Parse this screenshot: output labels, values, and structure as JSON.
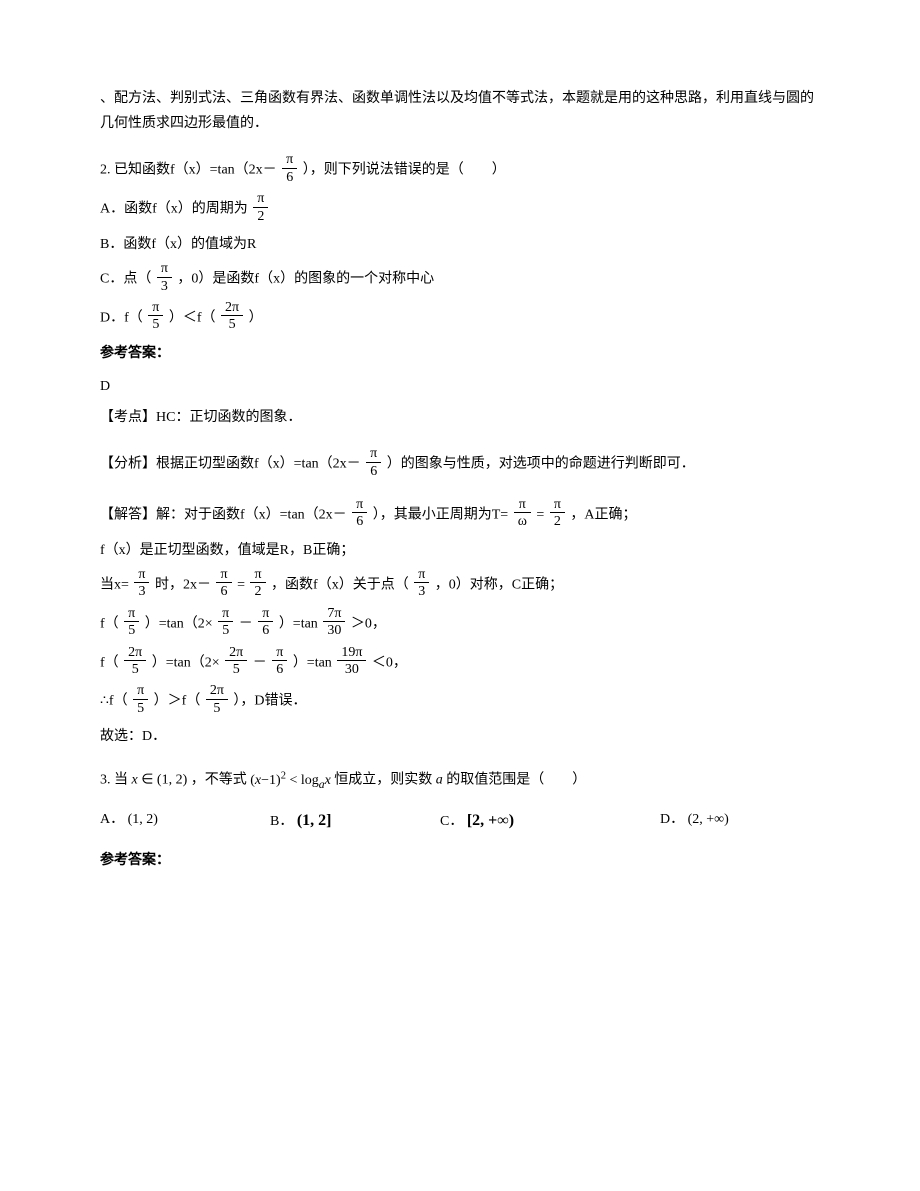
{
  "intro": "、配方法、判别式法、三角函数有界法、函数单调性法以及均值不等式法，本题就是用的这种思路，利用直线与圆的几何性质求四边形最值的．",
  "q2": {
    "stem_pre": "2. 已知函数f（x）=tan（2x－",
    "stem_post": "），则下列说法错误的是（　　）",
    "optA_pre": "A．函数f（x）的周期为",
    "optB": "B．函数f（x）的值域为R",
    "optC_pre": "C．点（",
    "optC_post": "，0）是函数f（x）的图象的一个对称中心",
    "optD_pre": "D．f（",
    "optD_mid": "）＜f（",
    "optD_post": "）",
    "ans_label": "参考答案：",
    "answer": "D",
    "point": "【考点】HC：正切函数的图象．",
    "analysis_pre": "【分析】根据正切型函数f（x）=tan（2x－",
    "analysis_post": "）的图象与性质，对选项中的命题进行判断即可．",
    "solve_pre": "【解答】解：对于函数f（x）=tan（2x－",
    "solve_mid": "），其最小正周期为T=",
    "solve_eq": "=",
    "solve_post": "，A正确；",
    "solve_b": "f（x）是正切型函数，值域是R，B正确；",
    "solve_c_1": "当x=",
    "solve_c_2": "时，2x－",
    "solve_c_3": "=",
    "solve_c_4": "，函数f（x）关于点（",
    "solve_c_5": "，0）对称，C正确；",
    "solve_d1_1": "f（",
    "solve_d1_2": "）=tan（2×",
    "solve_d1_3": "－",
    "solve_d1_4": "）=tan",
    "solve_d1_5": "＞0，",
    "solve_d2_1": "f（",
    "solve_d2_2": "）=tan（2×",
    "solve_d2_3": "－",
    "solve_d2_4": "）=tan",
    "solve_d2_5": "＜0，",
    "solve_res_1": "∴f（",
    "solve_res_2": "）＞f（",
    "solve_res_3": "），D错误．",
    "conclusion": "故选：D．"
  },
  "q3": {
    "stem_1": "3. 当",
    "stem_x": "x ∈ (1, 2)",
    "stem_2": "，不等式",
    "stem_ineq_l": "(x−1)",
    "stem_ineq_r": " < log ",
    "stem_ineq_a": "a",
    "stem_ineq_x": "x",
    "stem_3": " 恒成立，则实数",
    "stem_a": "a",
    "stem_4": " 的取值范围是（　　）",
    "optA": "(1, 2)",
    "optB": "(1, 2]",
    "optC": "[2, +∞)",
    "optD": "(2, +∞)",
    "labelA": "A．",
    "labelB": "B．",
    "labelC": "C．",
    "labelD": "D．",
    "ans_label": "参考答案："
  },
  "pi": "π",
  "omega": "ω"
}
